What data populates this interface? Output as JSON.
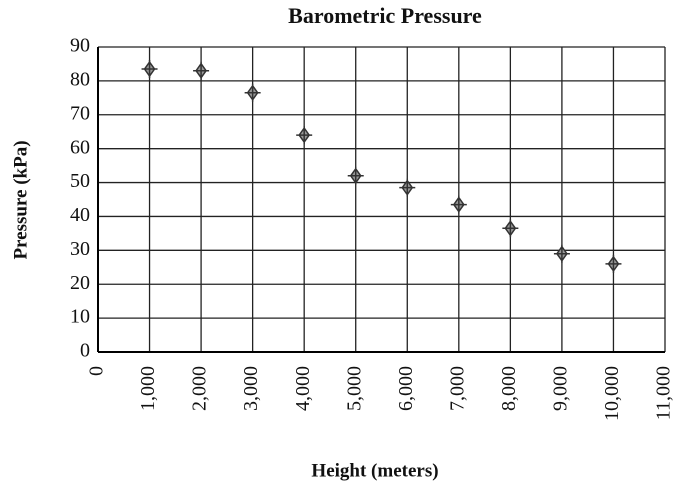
{
  "chart_data": {
    "type": "scatter",
    "title": "Barometric Pressure",
    "x_label": "Height (meters)",
    "y_label": "Pressure (kPa)",
    "x": [
      1000,
      2000,
      3000,
      4000,
      5000,
      6000,
      7000,
      8000,
      9000,
      10000
    ],
    "values": [
      83.5,
      83,
      76.5,
      64,
      52,
      48.5,
      43.5,
      36.5,
      29,
      26
    ],
    "color": "#333333",
    "xlim": [
      0,
      11000
    ],
    "xticks": [
      0,
      {
        "value": 1000,
        "label": "1,000"
      },
      {
        "value": 2000,
        "label": "2,000"
      },
      {
        "value": 3000,
        "label": "3,000"
      },
      {
        "value": 4000,
        "label": "4,000"
      },
      {
        "value": 5000,
        "label": "5,000"
      },
      {
        "value": 6000,
        "label": "6,000"
      },
      {
        "value": 7000,
        "label": "7,000"
      },
      {
        "value": 8000,
        "label": "8,000"
      },
      {
        "value": 9000,
        "label": "9,000"
      },
      {
        "value": 10000,
        "label": "10,000"
      },
      {
        "value": 11000,
        "label": "11,000"
      }
    ],
    "ylim": [
      0,
      90
    ],
    "yticks": [
      0,
      10,
      20,
      30,
      40,
      50,
      60,
      70,
      80,
      90
    ],
    "grid": true
  }
}
